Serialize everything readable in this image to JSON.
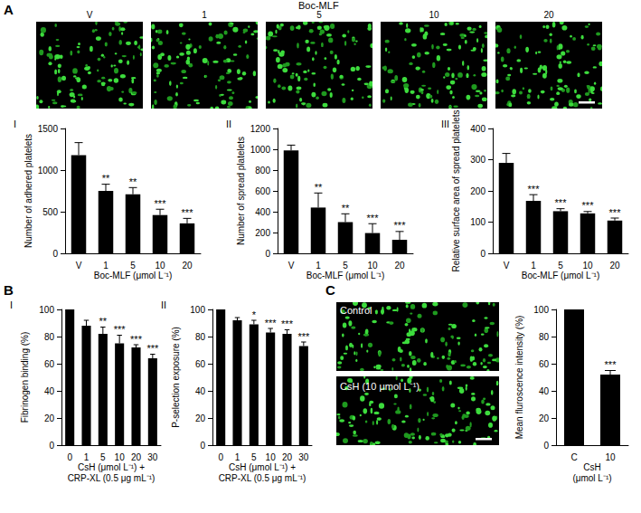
{
  "figure": {
    "panels": [
      "A",
      "B",
      "C"
    ],
    "A": {
      "heading": "Boc-MLF",
      "image_labels": [
        "V",
        "1",
        "5",
        "10",
        "20"
      ]
    },
    "C": {
      "image_labels": [
        "Control",
        "CsH (10 μmol L⁻¹)"
      ]
    }
  },
  "chart_data": [
    {
      "type": "bar",
      "title": "I",
      "x_label": "Boc-MLF (μmol L⁻¹)",
      "y_label": "Number of adhered platelets",
      "categories": [
        "V",
        "1",
        "5",
        "10",
        "20"
      ],
      "values": [
        1180,
        750,
        710,
        460,
        360
      ],
      "errors": [
        150,
        80,
        80,
        70,
        60
      ],
      "annotations": [
        null,
        "**",
        "**",
        "***",
        "***"
      ],
      "color": "#000000",
      "ylim": [
        0,
        1500
      ],
      "yticks": [
        0,
        500,
        1000,
        1500
      ],
      "grid": false
    },
    {
      "type": "bar",
      "title": "II",
      "x_label": "Boc-MLF (μmol L⁻¹)",
      "y_label": "Number of spread platelets",
      "categories": [
        "V",
        "1",
        "5",
        "10",
        "20"
      ],
      "values": [
        990,
        440,
        300,
        195,
        130
      ],
      "errors": [
        50,
        140,
        80,
        90,
        80
      ],
      "annotations": [
        null,
        "**",
        "**",
        "***",
        "***"
      ],
      "color": "#000000",
      "ylim": [
        0,
        1200
      ],
      "yticks": [
        0,
        200,
        400,
        600,
        800,
        1000,
        1200
      ],
      "grid": false
    },
    {
      "type": "bar",
      "title": "III",
      "x_label": "Boc-MLF (μmol L⁻¹)",
      "y_label": "Relative surface area of spread platelets",
      "categories": [
        "V",
        "1",
        "5",
        "10",
        "20"
      ],
      "values": [
        290,
        168,
        135,
        128,
        105
      ],
      "errors": [
        30,
        20,
        8,
        6,
        8
      ],
      "annotations": [
        null,
        "***",
        "***",
        "***",
        "***"
      ],
      "color": "#000000",
      "ylim": [
        0,
        400
      ],
      "yticks": [
        0,
        100,
        200,
        300,
        400
      ],
      "grid": false
    },
    {
      "type": "bar",
      "title": "I",
      "x_label": "CsH (μmol L⁻¹) +\nCRP-XL (0.5 μg mL⁻¹)",
      "y_label": "Fibrinogen binding (%)",
      "categories": [
        "0",
        "1",
        "5",
        "10",
        "20",
        "30"
      ],
      "values": [
        100,
        88,
        82,
        75,
        72,
        64
      ],
      "errors": [
        0,
        4,
        5,
        6,
        2,
        3
      ],
      "annotations": [
        null,
        null,
        "**",
        "***",
        "***",
        "***"
      ],
      "color": "#000000",
      "ylim": [
        0,
        100
      ],
      "yticks": [
        0,
        20,
        40,
        60,
        80,
        100
      ],
      "grid": false
    },
    {
      "type": "bar",
      "title": "II",
      "x_label": "CsH (μmol L⁻¹) +\nCRP-XL (0.5 μg mL⁻¹)",
      "y_label": "P-selection exposure (%)",
      "categories": [
        "0",
        "1",
        "5",
        "10",
        "20",
        "30"
      ],
      "values": [
        100,
        92,
        89,
        83,
        82,
        73
      ],
      "errors": [
        0,
        2,
        3,
        3,
        3,
        3
      ],
      "annotations": [
        null,
        null,
        "*",
        "***",
        "***",
        "***"
      ],
      "color": "#000000",
      "ylim": [
        0,
        100
      ],
      "yticks": [
        0,
        20,
        40,
        60,
        80,
        100
      ],
      "grid": false
    },
    {
      "type": "bar",
      "x_label": "CsH\n(μmol L⁻¹)",
      "y_label": "Mean fluroscence intensity (%)",
      "categories": [
        "C",
        "10"
      ],
      "values": [
        100,
        52
      ],
      "errors": [
        0,
        3
      ],
      "annotations": [
        null,
        "***"
      ],
      "color": "#000000",
      "ylim": [
        0,
        100
      ],
      "yticks": [
        0,
        20,
        40,
        60,
        80,
        100
      ],
      "grid": false
    }
  ]
}
